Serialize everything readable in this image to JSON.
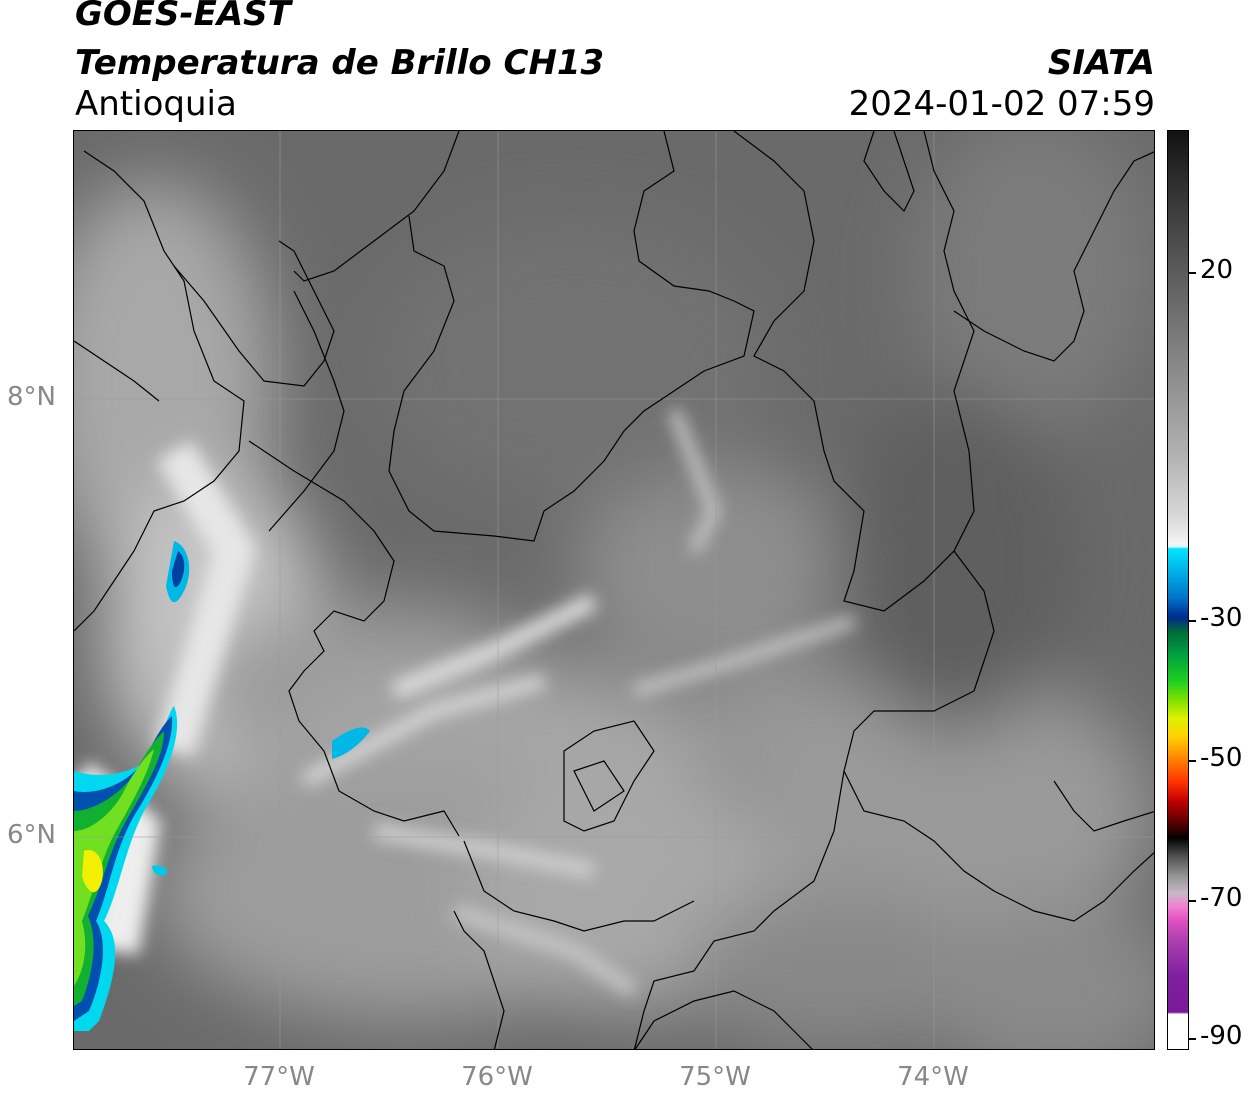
{
  "header": {
    "satellite": "GOES-EAST",
    "product": "Temperatura de Brillo CH13",
    "region": "Antioquia",
    "organization": "SIATA",
    "datetime": "2024-01-02 07:59"
  },
  "axes": {
    "lat_labels": [
      "8°N",
      "6°N"
    ],
    "lon_labels": [
      "77°W",
      "76°W",
      "75°W",
      "74°W"
    ]
  },
  "colorbar": {
    "tick_labels": [
      "20",
      "-30",
      "-50",
      "-70",
      "-90"
    ],
    "colors": {
      "warm": "#1a1a1a",
      "cold_cyan": "#00e5ff",
      "blue": "#002a8a",
      "green": "#20d020",
      "yellow": "#e0f000",
      "orange": "#ff9000",
      "red": "#c00000",
      "black": "#000000",
      "magenta": "#e050c0",
      "purple": "#7a1a9a"
    }
  }
}
